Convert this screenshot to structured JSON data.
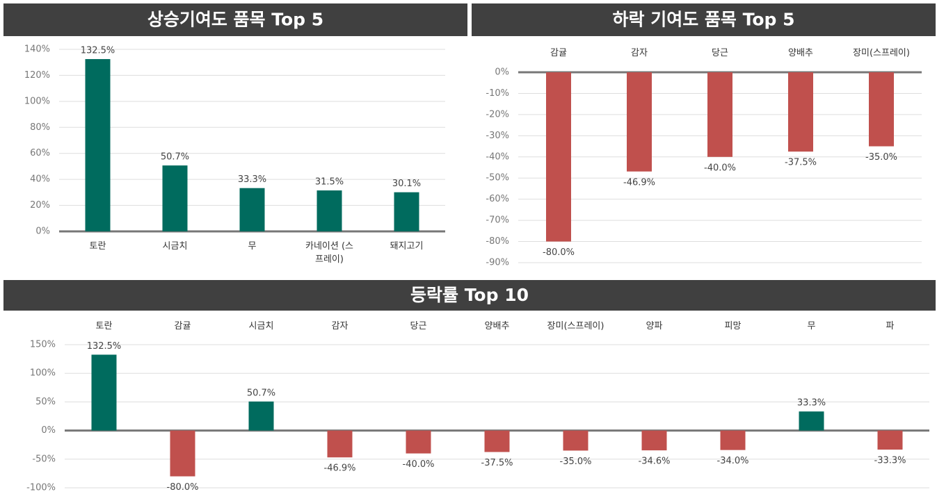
{
  "chart_data": [
    {
      "type": "bar",
      "title": "상승기여도 품목 Top 5",
      "categories": [
        "토란",
        "시금치",
        "무",
        "카네이션 (스프레이)",
        "돼지고기"
      ],
      "values": [
        132.5,
        50.7,
        33.3,
        31.5,
        30.1
      ],
      "value_labels": [
        "132.5%",
        "50.7%",
        "33.3%",
        "31.5%",
        "30.1%"
      ],
      "color": "#006b5e",
      "ylim": [
        0,
        140
      ],
      "yticks": [
        {
          "value": 0,
          "label": "0%"
        },
        {
          "value": 20,
          "label": "20%"
        },
        {
          "value": 40,
          "label": "40%"
        },
        {
          "value": 60,
          "label": "60%"
        },
        {
          "value": 80,
          "label": "80%"
        },
        {
          "value": 100,
          "label": "100%"
        },
        {
          "value": 120,
          "label": "120%"
        },
        {
          "value": 140,
          "label": "140%"
        }
      ],
      "grid": true
    },
    {
      "type": "bar",
      "title": "하락 기여도 품목 Top 5",
      "categories": [
        "감귤",
        "감자",
        "당근",
        "양배추",
        "장미(스프레이)"
      ],
      "values": [
        -80.0,
        -46.9,
        -40.0,
        -37.5,
        -35.0
      ],
      "value_labels": [
        "-80.0%",
        "-46.9%",
        "-40.0%",
        "-37.5%",
        "-35.0%"
      ],
      "color": "#c0504d",
      "ylim": [
        -90,
        0
      ],
      "yticks": [
        {
          "value": 0,
          "label": "0%"
        },
        {
          "value": -10,
          "label": "-10%"
        },
        {
          "value": -20,
          "label": "-20%"
        },
        {
          "value": -30,
          "label": "-30%"
        },
        {
          "value": -40,
          "label": "-40%"
        },
        {
          "value": -50,
          "label": "-50%"
        },
        {
          "value": -60,
          "label": "-60%"
        },
        {
          "value": -70,
          "label": "-70%"
        },
        {
          "value": -80,
          "label": "-80%"
        },
        {
          "value": -90,
          "label": "-90%"
        }
      ],
      "grid": true
    },
    {
      "type": "bar",
      "title": "등락률 Top 10",
      "categories": [
        "토란",
        "감귤",
        "시금치",
        "감자",
        "당근",
        "양배추",
        "장미(스프레이)",
        "양파",
        "피망",
        "무",
        "파"
      ],
      "values": [
        132.5,
        -80.0,
        50.7,
        -46.9,
        -40.0,
        -37.5,
        -35.0,
        -34.6,
        -34.0,
        33.3,
        -33.3
      ],
      "value_labels": [
        "132.5%",
        "-80.0%",
        "50.7%",
        "-46.9%",
        "-40.0%",
        "-37.5%",
        "-35.0%",
        "-34.6%",
        "-34.0%",
        "33.3%",
        "-33.3%"
      ],
      "colors": [
        "#006b5e",
        "#c0504d",
        "#006b5e",
        "#c0504d",
        "#c0504d",
        "#c0504d",
        "#c0504d",
        "#c0504d",
        "#c0504d",
        "#006b5e",
        "#c0504d"
      ],
      "ylim": [
        -100,
        150
      ],
      "yticks": [
        {
          "value": -100,
          "label": "-100%"
        },
        {
          "value": -50,
          "label": "-50%"
        },
        {
          "value": 0,
          "label": "0%"
        },
        {
          "value": 50,
          "label": "50%"
        },
        {
          "value": 100,
          "label": "100%"
        },
        {
          "value": 150,
          "label": "150%"
        }
      ],
      "grid": true
    }
  ]
}
